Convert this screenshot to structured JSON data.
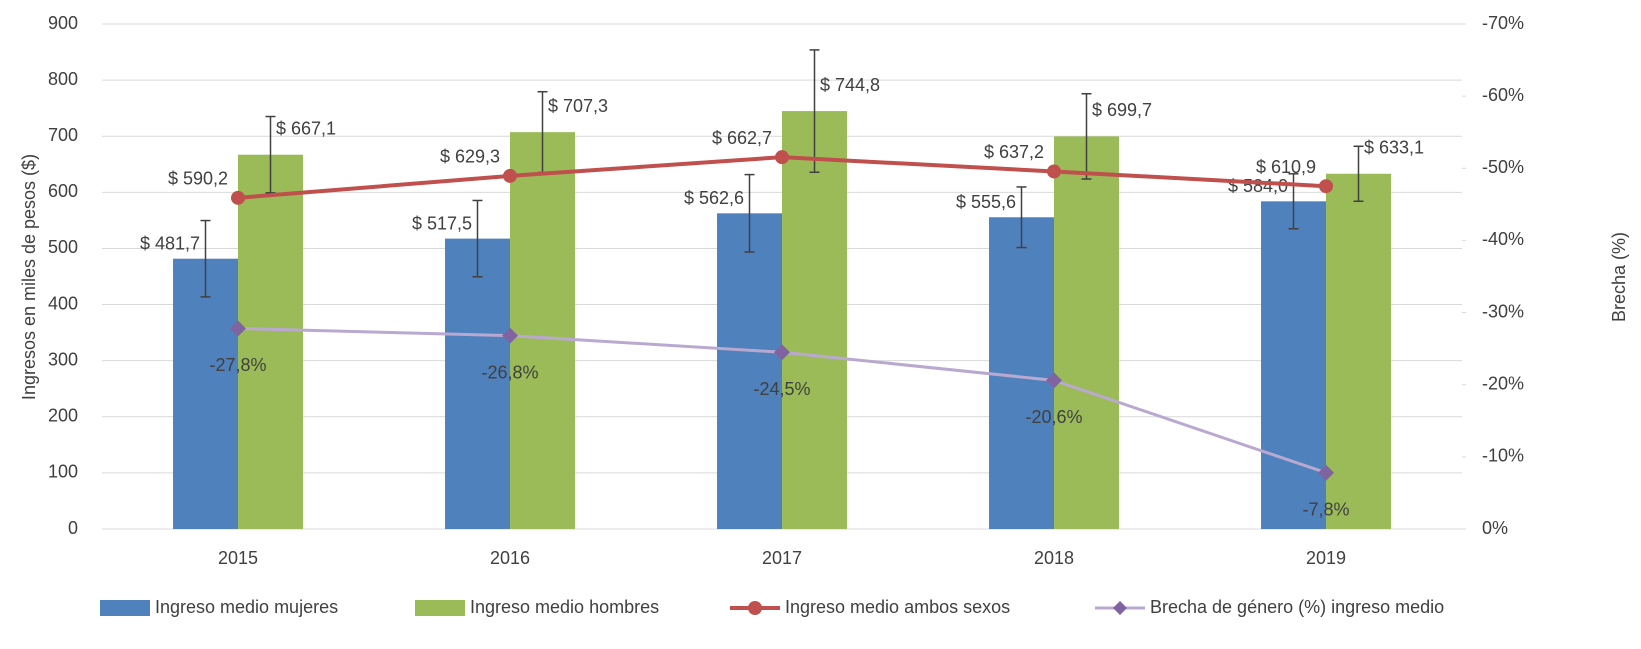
{
  "chart_data": {
    "type": "bar",
    "categories": [
      "2015",
      "2016",
      "2017",
      "2018",
      "2019"
    ],
    "y_label": "Ingresos en miles de pesos ($)",
    "y2_label": "Brecha (%)",
    "ylim": [
      0,
      900
    ],
    "yticks": [
      0,
      100,
      200,
      300,
      400,
      500,
      600,
      700,
      800,
      900
    ],
    "y2lim": [
      0,
      -70
    ],
    "y2ticks": [
      {
        "value": 0,
        "label": "0%"
      },
      {
        "value": -10,
        "label": "-10%"
      },
      {
        "value": -20,
        "label": "-20%"
      },
      {
        "value": -30,
        "label": "-30%"
      },
      {
        "value": -40,
        "label": "-40%"
      },
      {
        "value": -50,
        "label": "-50%"
      },
      {
        "value": -60,
        "label": "-60%"
      },
      {
        "value": -70,
        "label": "-70%"
      }
    ],
    "grid": true,
    "legend": "bottom",
    "series": [
      {
        "name": "Ingreso medio mujeres",
        "kind": "bar",
        "color": "#4f81bd",
        "values": [
          481.7,
          517.5,
          562.6,
          555.6,
          584.0
        ],
        "value_labels": [
          "$ 481,7",
          "$ 517,5",
          "$ 562,6",
          "$ 555,6",
          "$ 584,0"
        ],
        "errors": [
          68,
          68,
          69,
          54,
          49
        ]
      },
      {
        "name": "Ingreso medio hombres",
        "kind": "bar",
        "color": "#9bbb59",
        "values": [
          667.1,
          707.3,
          744.8,
          699.7,
          633.1
        ],
        "value_labels": [
          "$ 667,1",
          "$ 707,3",
          "$ 744,8",
          "$ 699,7",
          "$ 633,1"
        ],
        "errors": [
          68,
          72,
          109,
          76,
          49
        ]
      },
      {
        "name": "Ingreso medio ambos sexos",
        "kind": "line",
        "color": "#c0504d",
        "values": [
          590.2,
          629.3,
          662.7,
          637.2,
          610.9
        ],
        "value_labels": [
          "$ 590,2",
          "$ 629,3",
          "$ 662,7",
          "$ 637,2",
          "$ 610,9"
        ]
      },
      {
        "name": "Brecha de género (%) ingreso medio",
        "kind": "line",
        "axis": "y2",
        "color": "#b9a9d0",
        "marker_color": "#8064a2",
        "values": [
          -27.8,
          -26.8,
          -24.5,
          -20.6,
          -7.8
        ],
        "value_labels": [
          "-27,8%",
          "-26,8%",
          "-24,5%",
          "-20,6%",
          "-7,8%"
        ]
      }
    ]
  }
}
